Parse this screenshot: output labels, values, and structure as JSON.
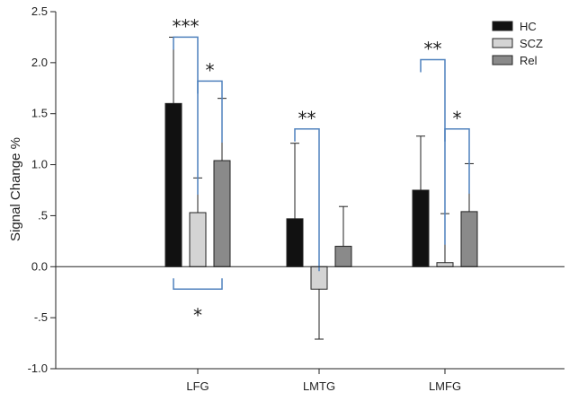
{
  "chart_data": {
    "type": "bar",
    "ylabel": "Signal Change %",
    "ylim": [
      -1.0,
      2.5
    ],
    "yticks": [
      -1.0,
      -0.5,
      0.0,
      0.5,
      1.0,
      1.5,
      2.0,
      2.5
    ],
    "ytick_labels": [
      "-1.0",
      "-.5",
      "0.0",
      ".5",
      "1.0",
      "1.5",
      "2.0",
      "2.5"
    ],
    "categories": [
      "LFG",
      "LMTG",
      "LMFG"
    ],
    "legend_position": "top-right",
    "series": [
      {
        "name": "HC",
        "color": "#111111",
        "values": [
          1.6,
          0.47,
          0.75
        ],
        "errors": [
          0.65,
          0.74,
          0.53
        ]
      },
      {
        "name": "SCZ",
        "color": "#d4d4d4",
        "values": [
          0.53,
          -0.22,
          0.04
        ],
        "errors": [
          0.34,
          0.49,
          0.48
        ]
      },
      {
        "name": "Rel",
        "color": "#8a8a8a",
        "values": [
          1.04,
          0.2,
          0.54
        ],
        "errors": [
          0.61,
          0.39,
          0.47
        ]
      }
    ],
    "significance": [
      {
        "label": "***",
        "category": 0,
        "from": "HC",
        "to": "SCZ",
        "line_y": 2.25,
        "side": "above"
      },
      {
        "label": "*",
        "category": 0,
        "from": "SCZ",
        "to": "Rel",
        "line_y": 1.82,
        "side": "above"
      },
      {
        "label": "*",
        "category": 0,
        "from": "HC",
        "to": "Rel",
        "line_y": -0.22,
        "side": "below"
      },
      {
        "label": "**",
        "category": 1,
        "from": "HC",
        "to": "SCZ",
        "line_y": 1.35,
        "side": "above"
      },
      {
        "label": "**",
        "category": 2,
        "from": "HC",
        "to": "SCZ",
        "line_y": 2.03,
        "side": "above"
      },
      {
        "label": "*",
        "category": 2,
        "from": "SCZ",
        "to": "Rel",
        "line_y": 1.35,
        "side": "above"
      }
    ],
    "sig_line_color": "#4f81bd"
  }
}
